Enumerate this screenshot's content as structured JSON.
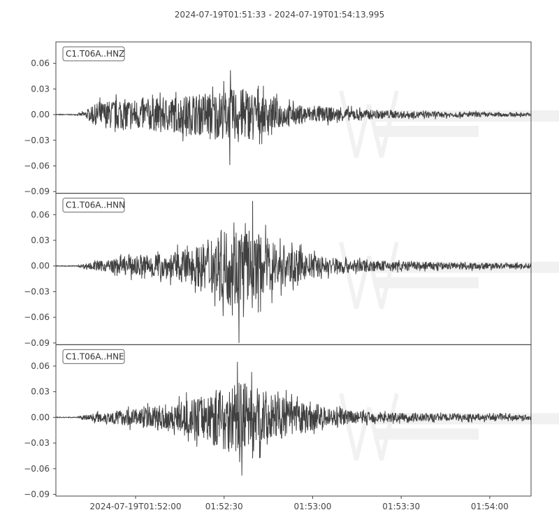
{
  "title": "2024-07-19T01:51:33  -  2024-07-19T01:54:13.995",
  "colors": {
    "trace": "#404040",
    "axes": "#444444",
    "watermark": "#f1f1f1"
  },
  "chart_data": {
    "type": "line",
    "x_range_seconds": [
      0,
      160.995
    ],
    "x_ticks": [
      {
        "t": 27,
        "label": "2024-07-19T01:52:00"
      },
      {
        "t": 57,
        "label": "01:52:30"
      },
      {
        "t": 87,
        "label": "01:53:00"
      },
      {
        "t": 117,
        "label": "01:53:30"
      },
      {
        "t": 147,
        "label": "01:54:00"
      }
    ],
    "y_range": [
      -0.092,
      0.085
    ],
    "y_ticks": [
      {
        "v": 0.06,
        "label": "0.06"
      },
      {
        "v": 0.03,
        "label": "0.03"
      },
      {
        "v": 0.0,
        "label": "0.00"
      },
      {
        "v": -0.03,
        "label": "−0.03"
      },
      {
        "v": -0.06,
        "label": "−0.06"
      },
      {
        "v": -0.09,
        "label": "−0.09"
      }
    ],
    "panels": [
      {
        "label": "C1.T06A..HNZ",
        "peak_pos": 0.052,
        "peak_neg": -0.059,
        "envelope": [
          [
            0,
            0.0005
          ],
          [
            7,
            0.0005
          ],
          [
            10,
            0.004
          ],
          [
            14,
            0.014
          ],
          [
            20,
            0.018
          ],
          [
            30,
            0.019
          ],
          [
            40,
            0.021
          ],
          [
            50,
            0.025
          ],
          [
            60,
            0.03
          ],
          [
            65,
            0.03
          ],
          [
            72,
            0.02
          ],
          [
            80,
            0.012
          ],
          [
            90,
            0.009
          ],
          [
            100,
            0.007
          ],
          [
            110,
            0.005
          ],
          [
            120,
            0.004
          ],
          [
            140,
            0.003
          ],
          [
            161,
            0.002
          ]
        ]
      },
      {
        "label": "C1.T06A..HNN",
        "peak_pos": 0.076,
        "peak_neg": -0.09,
        "envelope": [
          [
            0,
            0.0005
          ],
          [
            7,
            0.0005
          ],
          [
            10,
            0.003
          ],
          [
            15,
            0.006
          ],
          [
            25,
            0.011
          ],
          [
            40,
            0.016
          ],
          [
            50,
            0.026
          ],
          [
            57,
            0.045
          ],
          [
            62,
            0.048
          ],
          [
            70,
            0.036
          ],
          [
            80,
            0.02
          ],
          [
            90,
            0.012
          ],
          [
            100,
            0.008
          ],
          [
            110,
            0.006
          ],
          [
            120,
            0.005
          ],
          [
            140,
            0.004
          ],
          [
            161,
            0.003
          ]
        ]
      },
      {
        "label": "C1.T06A..HNE",
        "peak_pos": 0.065,
        "peak_neg": -0.068,
        "envelope": [
          [
            0,
            0.0005
          ],
          [
            7,
            0.0005
          ],
          [
            10,
            0.003
          ],
          [
            15,
            0.006
          ],
          [
            25,
            0.01
          ],
          [
            40,
            0.016
          ],
          [
            50,
            0.025
          ],
          [
            57,
            0.04
          ],
          [
            63,
            0.042
          ],
          [
            70,
            0.032
          ],
          [
            80,
            0.02
          ],
          [
            90,
            0.012
          ],
          [
            100,
            0.008
          ],
          [
            110,
            0.006
          ],
          [
            120,
            0.005
          ],
          [
            140,
            0.004
          ],
          [
            161,
            0.003
          ]
        ]
      }
    ]
  }
}
